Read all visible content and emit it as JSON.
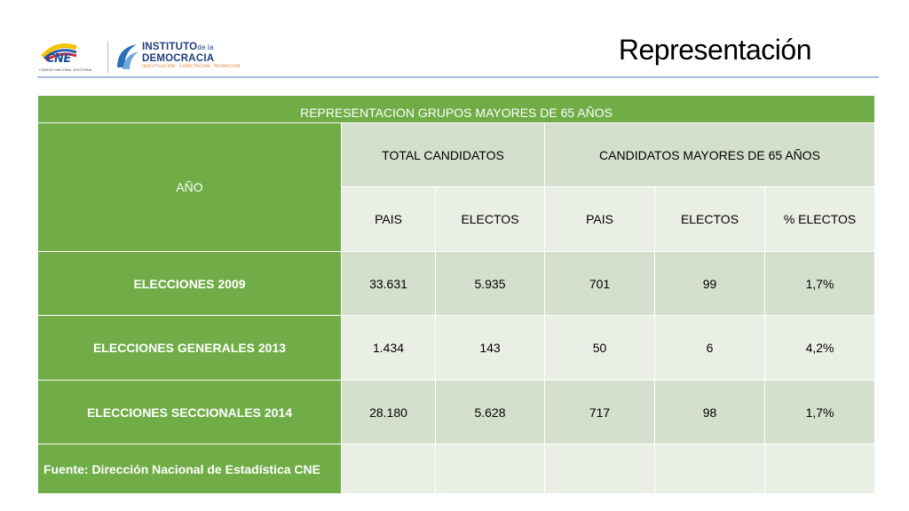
{
  "header": {
    "cne_logo": {
      "text": "CNE",
      "subtext": "CONSEJO NACIONAL ELECTORAL"
    },
    "institute_logo": {
      "line1": "INSTITUTO",
      "de": "de la",
      "line2": "DEMOCRACIA",
      "tagline": "INVESTIGACIÓN · CAPACITACIÓN · PROMOCIÓN"
    },
    "title": "Representación"
  },
  "table": {
    "banner": "REPRESENTACION   GRUPOS MAYORES DE 65 AÑOS",
    "col_year": "AÑO",
    "group_total": "TOTAL CANDIDATOS",
    "group_over65": "CANDIDATOS MAYORES DE 65 AÑOS",
    "sub_headers": [
      "PAIS",
      "ELECTOS",
      "PAIS",
      "ELECTOS",
      "%  ELECTOS"
    ],
    "rows": [
      {
        "label": "ELECCIONES 2009",
        "values": [
          "33.631",
          "5.935",
          "701",
          "99",
          "1,7%"
        ]
      },
      {
        "label": "ELECCIONES GENERALES 2013",
        "values": [
          "1.434",
          "143",
          "50",
          "6",
          "4,2%"
        ]
      },
      {
        "label": "ELECCIONES SECCIONALES 2014",
        "values": [
          "28.180",
          "5.628",
          "717",
          "98",
          "1,7%"
        ]
      }
    ],
    "footer_source": "Fuente: Dirección Nacional de Estadística CNE"
  },
  "colors": {
    "header_green": "#70ad47",
    "cell_dark": "#d5dfcd",
    "cell_light": "#eaefe6",
    "rule_blue": "#a7bcd6"
  }
}
